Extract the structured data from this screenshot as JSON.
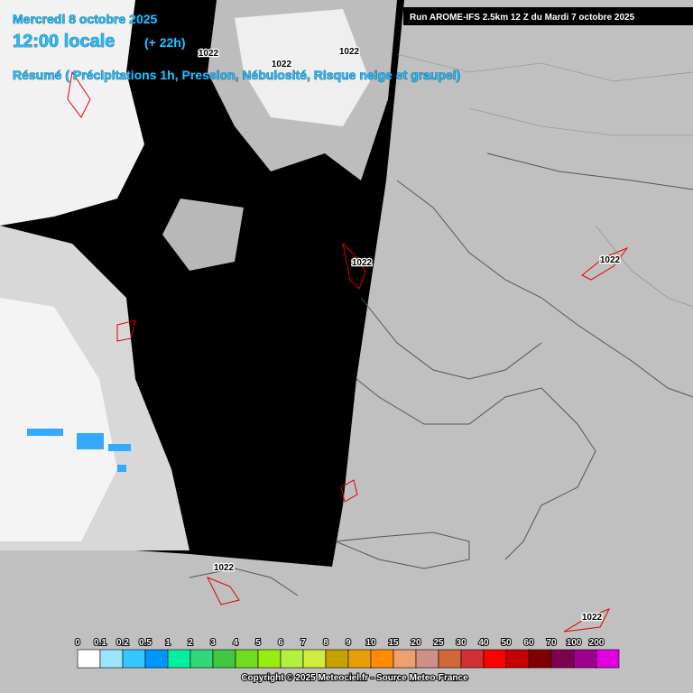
{
  "header": {
    "date": "Mercredi 8 octobre 2025",
    "time": "12:00 locale",
    "lead": "(+ 22h)",
    "subtitle": "Résumé ( Précipitations 1h, Pression, Nébulosité, Risque neige et graupel)"
  },
  "run": "Run AROME-IFS 2.5km 12 Z du Mardi 7 octobre 2025",
  "isobars": {
    "labels": [
      "1022",
      "1022",
      "1022",
      "1022",
      "1022",
      "1022",
      "1022"
    ]
  },
  "legend": {
    "labels": [
      0,
      0.1,
      0.2,
      0.5,
      1,
      2,
      3,
      4,
      5,
      6,
      7,
      8,
      9,
      10,
      15,
      20,
      25,
      30,
      40,
      50,
      60,
      70,
      100,
      200
    ],
    "colors": [
      "#ffffff",
      "#9be6ff",
      "#33c8ff",
      "#0096ff",
      "#00f0a0",
      "#30d878",
      "#40c840",
      "#70dc20",
      "#98ec10",
      "#b4f040",
      "#d2ec3c",
      "#c8a000",
      "#e8a000",
      "#ff8c00",
      "#f0a070",
      "#d09088",
      "#d06838",
      "#d03030",
      "#ff0000",
      "#c80000",
      "#800000",
      "#800050",
      "#a00090",
      "#e000e0"
    ]
  },
  "footer": {
    "copyright": "Copyright © 2025 Meteociel.fr - Source Meteo-France"
  }
}
